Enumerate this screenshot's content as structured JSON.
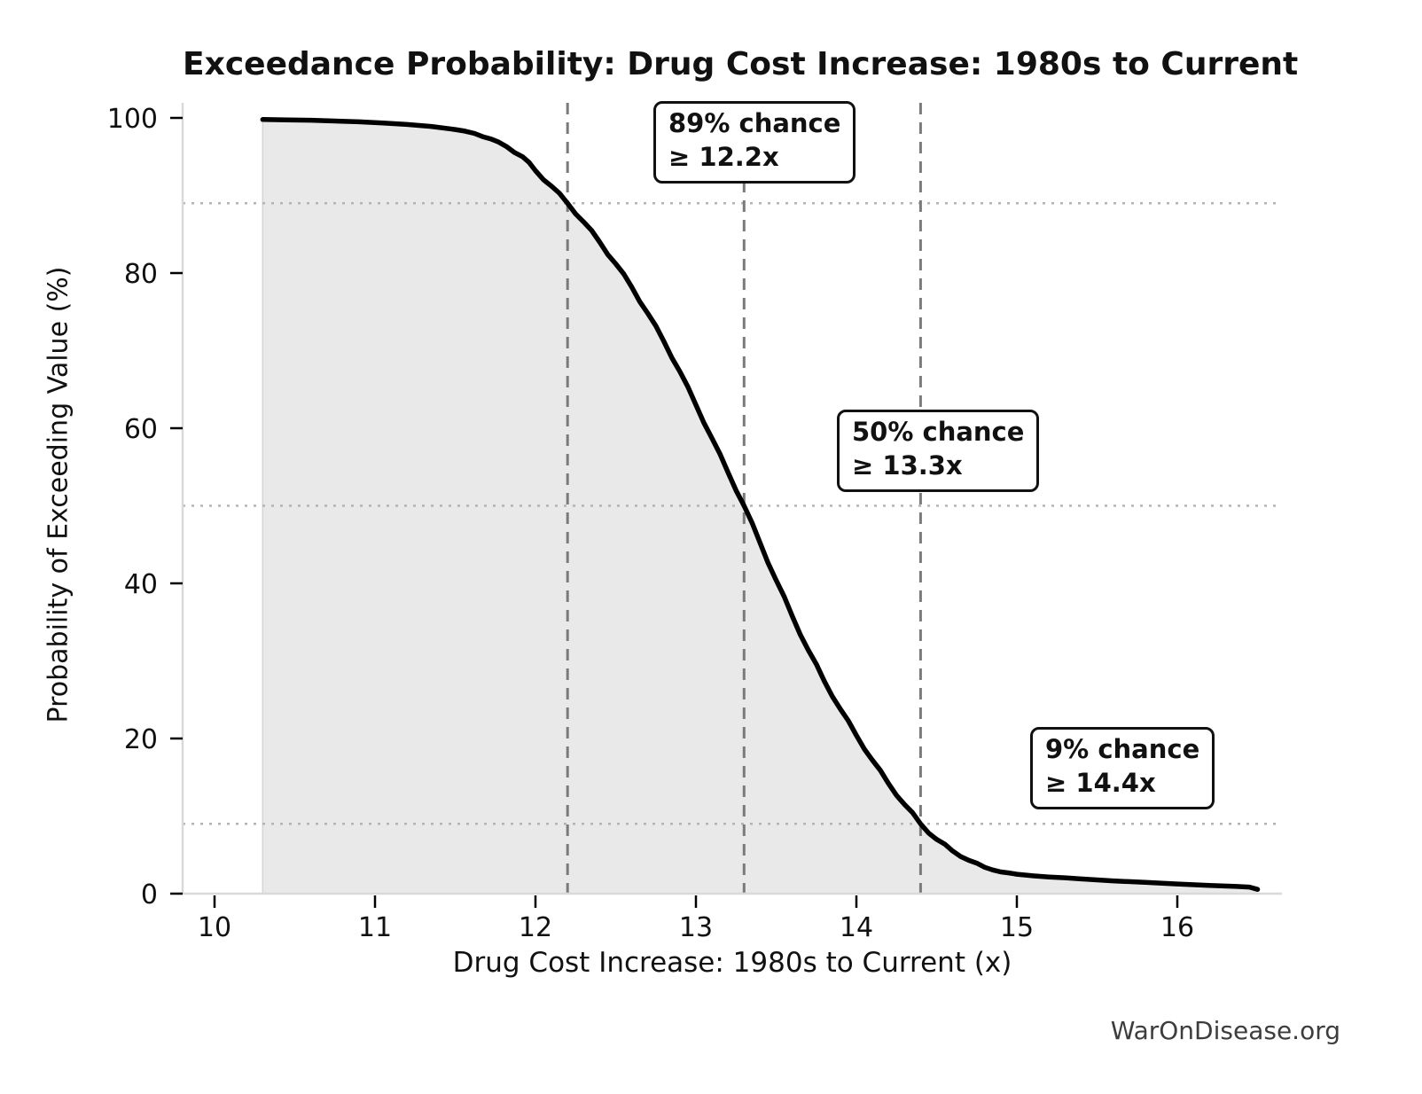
{
  "watermark": "WarOnDisease.org",
  "chart_data": {
    "type": "line",
    "title": "Exceedance Probability: Drug Cost Increase: 1980s to Current",
    "xlabel": "Drug Cost Increase: 1980s to Current (x)",
    "ylabel": "Probability of Exceeding Value (%)",
    "xlim": [
      9.8,
      16.66
    ],
    "ylim": [
      0,
      102
    ],
    "x_ticks": [
      10,
      11,
      12,
      13,
      14,
      15,
      16
    ],
    "y_ticks": [
      0,
      20,
      40,
      60,
      80,
      100
    ],
    "legend": "none",
    "grid": "none (dotted/dashed reference lines only)",
    "series": [
      {
        "name": "exceedance-probability-curve",
        "style": "thick black survival curve with light gray area fill to baseline",
        "points": [
          [
            10.3,
            99.8
          ],
          [
            10.45,
            99.75
          ],
          [
            10.6,
            99.7
          ],
          [
            10.75,
            99.6
          ],
          [
            10.9,
            99.5
          ],
          [
            11.05,
            99.35
          ],
          [
            11.2,
            99.15
          ],
          [
            11.35,
            98.9
          ],
          [
            11.5,
            98.5
          ],
          [
            11.62,
            98.0
          ],
          [
            11.72,
            97.3
          ],
          [
            11.82,
            96.3
          ],
          [
            11.92,
            95.0
          ],
          [
            12.0,
            93.2
          ],
          [
            12.1,
            91.2
          ],
          [
            12.2,
            89.0
          ],
          [
            12.3,
            86.6
          ],
          [
            12.4,
            84.0
          ],
          [
            12.5,
            81.2
          ],
          [
            12.6,
            78.2
          ],
          [
            12.7,
            74.8
          ],
          [
            12.8,
            71.2
          ],
          [
            12.9,
            67.3
          ],
          [
            13.0,
            63.0
          ],
          [
            13.1,
            58.7
          ],
          [
            13.2,
            54.3
          ],
          [
            13.3,
            50.0
          ],
          [
            13.4,
            45.2
          ],
          [
            13.5,
            40.4
          ],
          [
            13.6,
            35.8
          ],
          [
            13.7,
            31.4
          ],
          [
            13.8,
            27.4
          ],
          [
            13.9,
            23.8
          ],
          [
            14.0,
            20.4
          ],
          [
            14.1,
            17.2
          ],
          [
            14.2,
            14.2
          ],
          [
            14.3,
            11.5
          ],
          [
            14.4,
            9.0
          ],
          [
            14.5,
            7.0
          ],
          [
            14.6,
            5.5
          ],
          [
            14.7,
            4.3
          ],
          [
            14.8,
            3.4
          ],
          [
            14.9,
            2.8
          ],
          [
            15.0,
            2.5
          ],
          [
            15.2,
            2.15
          ],
          [
            15.4,
            1.9
          ],
          [
            15.6,
            1.65
          ],
          [
            15.8,
            1.45
          ],
          [
            16.0,
            1.25
          ],
          [
            16.2,
            1.05
          ],
          [
            16.35,
            0.95
          ],
          [
            16.45,
            0.85
          ],
          [
            16.5,
            0.55
          ]
        ]
      }
    ],
    "reference_lines": {
      "vertical_dashed_x": [
        12.2,
        13.3,
        14.4
      ],
      "horizontal_dotted_y": [
        89,
        50,
        9
      ]
    },
    "annotations": [
      {
        "line1": "89% chance",
        "line2": "≥ 12.2x",
        "at_x": 12.2,
        "at_y": 89
      },
      {
        "line1": "50% chance",
        "line2": "≥ 13.3x",
        "at_x": 13.3,
        "at_y": 50
      },
      {
        "line1": "9% chance",
        "line2": "≥ 14.4x",
        "at_x": 14.4,
        "at_y": 9
      }
    ]
  },
  "colors": {
    "background": "#ffffff",
    "curve": "#000000",
    "area_fill": "#e9e9e9",
    "area_edge": "#d6d6d6",
    "spine": "#d9d9d9",
    "dashed_line": "#7a7a7a",
    "dotted_line": "#b3b3b3",
    "tick_mark": "#000000",
    "text": "#111111",
    "watermark": "#3d3d3d"
  }
}
